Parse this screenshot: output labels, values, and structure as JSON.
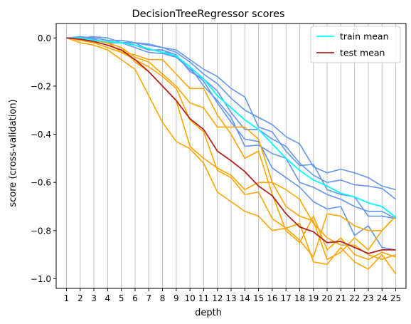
{
  "chart_data": {
    "type": "line",
    "title": "DecisionTreeRegressor scores",
    "xlabel": "depth",
    "ylabel": "score (cross-validation)",
    "x": [
      1,
      2,
      3,
      4,
      5,
      6,
      7,
      8,
      9,
      10,
      11,
      12,
      13,
      14,
      15,
      16,
      17,
      18,
      19,
      20,
      21,
      22,
      23,
      24,
      25
    ],
    "xlim": [
      0.25,
      25.75
    ],
    "ylim": [
      -1.04,
      0.06
    ],
    "yticks": [
      0.0,
      -0.2,
      -0.4,
      -0.6,
      -0.8,
      -1.0
    ],
    "ytick_labels": [
      "0.0",
      "−0.2",
      "−0.4",
      "−0.6",
      "−0.8",
      "−1.0"
    ],
    "grid": "vertical",
    "legend_position": "top-right",
    "colors": {
      "train_fold": "#6495ED",
      "test_fold": "#FFA500",
      "train_mean": "#00FFFF",
      "test_mean": "#B22222"
    },
    "series": [
      {
        "name": "train mean",
        "role": "train_mean",
        "legend": true,
        "values": [
          0.0,
          0.0,
          -0.01,
          -0.015,
          -0.02,
          -0.03,
          -0.045,
          -0.06,
          -0.075,
          -0.12,
          -0.17,
          -0.24,
          -0.29,
          -0.34,
          -0.38,
          -0.44,
          -0.5,
          -0.55,
          -0.59,
          -0.615,
          -0.645,
          -0.66,
          -0.685,
          -0.7,
          -0.745
        ]
      },
      {
        "name": "test mean",
        "role": "test_mean",
        "legend": true,
        "values": [
          0.0,
          -0.005,
          -0.015,
          -0.03,
          -0.05,
          -0.09,
          -0.14,
          -0.2,
          -0.26,
          -0.335,
          -0.38,
          -0.47,
          -0.51,
          -0.555,
          -0.615,
          -0.655,
          -0.73,
          -0.785,
          -0.805,
          -0.85,
          -0.845,
          -0.87,
          -0.895,
          -0.88,
          -0.88
        ]
      },
      {
        "role": "train_fold",
        "values": [
          0.0,
          0.0,
          0.005,
          0.0,
          -0.02,
          -0.02,
          -0.025,
          -0.04,
          -0.05,
          -0.09,
          -0.13,
          -0.16,
          -0.21,
          -0.245,
          -0.37,
          -0.39,
          -0.47,
          -0.53,
          -0.525,
          -0.63,
          -0.65,
          -0.66,
          -0.74,
          -0.74,
          -0.75
        ]
      },
      {
        "role": "train_fold",
        "values": [
          0.0,
          0.005,
          0.0,
          -0.01,
          -0.01,
          -0.02,
          -0.03,
          -0.04,
          -0.06,
          -0.1,
          -0.15,
          -0.19,
          -0.25,
          -0.3,
          -0.33,
          -0.36,
          -0.41,
          -0.44,
          -0.535,
          -0.56,
          -0.545,
          -0.56,
          -0.58,
          -0.615,
          -0.63
        ]
      },
      {
        "role": "train_fold",
        "values": [
          0.0,
          0.0,
          -0.005,
          -0.02,
          -0.02,
          -0.03,
          -0.05,
          -0.05,
          -0.07,
          -0.14,
          -0.17,
          -0.22,
          -0.31,
          -0.38,
          -0.38,
          -0.42,
          -0.45,
          -0.52,
          -0.57,
          -0.6,
          -0.59,
          -0.61,
          -0.615,
          -0.625,
          -0.67
        ]
      },
      {
        "role": "train_fold",
        "values": [
          0.0,
          0.0,
          -0.01,
          -0.02,
          -0.02,
          -0.04,
          -0.06,
          -0.065,
          -0.08,
          -0.12,
          -0.2,
          -0.26,
          -0.33,
          -0.45,
          -0.445,
          -0.48,
          -0.5,
          -0.6,
          -0.62,
          -0.65,
          -0.67,
          -0.7,
          -0.72,
          -0.72,
          -0.75
        ]
      },
      {
        "role": "train_fold",
        "values": [
          0.0,
          0.0,
          -0.01,
          -0.02,
          -0.02,
          -0.02,
          -0.05,
          -0.05,
          -0.08,
          -0.13,
          -0.18,
          -0.27,
          -0.35,
          -0.42,
          -0.43,
          -0.54,
          -0.58,
          -0.62,
          -0.68,
          -0.71,
          -0.7,
          -0.82,
          -0.78,
          -0.87,
          -0.88
        ]
      },
      {
        "role": "test_fold",
        "values": [
          0.0,
          -0.005,
          -0.01,
          -0.02,
          -0.04,
          -0.08,
          -0.1,
          -0.15,
          -0.2,
          -0.27,
          -0.29,
          -0.37,
          -0.37,
          -0.37,
          -0.42,
          -0.6,
          -0.63,
          -0.67,
          -0.77,
          -0.83,
          -0.86,
          -0.86,
          -0.9,
          -0.92,
          -0.9
        ]
      },
      {
        "role": "test_fold",
        "values": [
          0.0,
          0.0,
          -0.01,
          -0.02,
          -0.06,
          -0.07,
          -0.09,
          -0.09,
          -0.15,
          -0.21,
          -0.21,
          -0.32,
          -0.4,
          -0.5,
          -0.47,
          -0.65,
          -0.8,
          -0.85,
          -0.74,
          -0.88,
          -0.83,
          -0.9,
          -0.92,
          -0.89,
          -0.91
        ]
      },
      {
        "role": "test_fold",
        "values": [
          0.0,
          -0.01,
          -0.02,
          -0.04,
          -0.06,
          -0.09,
          -0.12,
          -0.16,
          -0.21,
          -0.34,
          -0.39,
          -0.55,
          -0.58,
          -0.65,
          -0.64,
          -0.75,
          -0.79,
          -0.77,
          -0.93,
          -0.94,
          -0.87,
          -0.93,
          -0.96,
          -0.9,
          -0.98
        ]
      },
      {
        "role": "test_fold",
        "values": [
          0.0,
          0.0,
          -0.01,
          -0.02,
          -0.04,
          -0.1,
          -0.14,
          -0.2,
          -0.26,
          -0.45,
          -0.5,
          -0.54,
          -0.57,
          -0.63,
          -0.6,
          -0.6,
          -0.7,
          -0.74,
          -0.76,
          -0.92,
          -0.89,
          -0.83,
          -0.88,
          -0.8,
          -0.74
        ]
      },
      {
        "role": "test_fold",
        "values": [
          0.0,
          -0.02,
          -0.03,
          -0.05,
          -0.09,
          -0.13,
          -0.24,
          -0.35,
          -0.43,
          -0.46,
          -0.52,
          -0.64,
          -0.68,
          -0.72,
          -0.74,
          -0.8,
          -0.79,
          -0.84,
          -0.91,
          -0.73,
          -0.74,
          -0.78,
          -0.8,
          -0.8,
          -0.74
        ]
      }
    ]
  }
}
